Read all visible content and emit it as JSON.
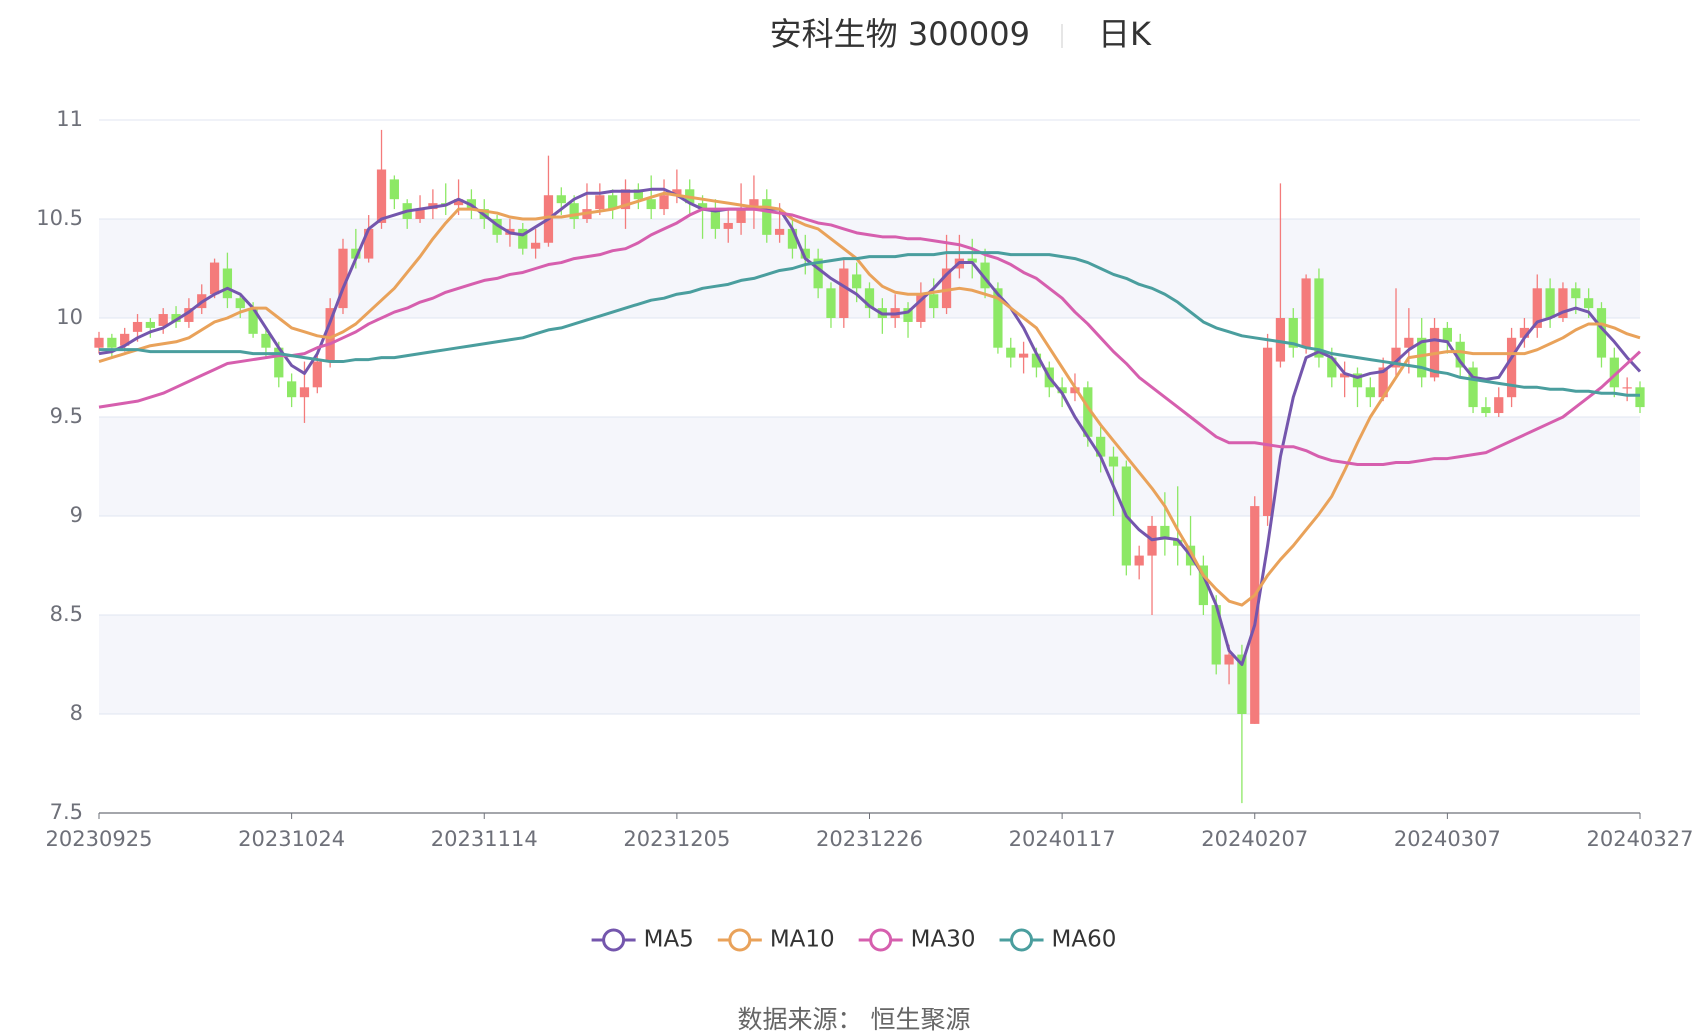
{
  "chart_data": {
    "type": "candlestick",
    "title": "安科生物 300009",
    "period": "日K",
    "source": "数据来源： 恒生聚源",
    "up_color": "#f47b7b",
    "down_color": "#8de865",
    "categories": [
      "20230925",
      null,
      null,
      null,
      null,
      null,
      null,
      null,
      null,
      null,
      null,
      null,
      null,
      null,
      null,
      "20231024",
      null,
      null,
      null,
      null,
      null,
      null,
      null,
      null,
      null,
      null,
      null,
      null,
      null,
      null,
      "20231114",
      null,
      null,
      null,
      null,
      null,
      null,
      null,
      null,
      null,
      null,
      null,
      null,
      null,
      null,
      "20231205",
      null,
      null,
      null,
      null,
      null,
      null,
      null,
      null,
      null,
      null,
      null,
      null,
      null,
      null,
      "20231226",
      null,
      null,
      null,
      null,
      null,
      null,
      null,
      null,
      null,
      null,
      null,
      null,
      null,
      null,
      "20240117",
      null,
      null,
      null,
      null,
      null,
      null,
      null,
      null,
      null,
      null,
      null,
      null,
      null,
      null,
      "20240207",
      null,
      null,
      null,
      null,
      null,
      null,
      null,
      null,
      null,
      null,
      null,
      null,
      null,
      null,
      "20240307",
      null,
      null,
      null,
      null,
      null,
      null,
      null,
      null,
      null,
      null,
      null,
      null,
      null,
      null,
      "20240327"
    ],
    "values": [
      [
        9.85,
        9.9,
        9.82,
        9.93
      ],
      [
        9.9,
        9.85,
        9.8,
        9.92
      ],
      [
        9.86,
        9.92,
        9.83,
        9.95
      ],
      [
        9.93,
        9.98,
        9.88,
        10.02
      ],
      [
        9.98,
        9.95,
        9.9,
        10.0
      ],
      [
        9.96,
        10.02,
        9.92,
        10.05
      ],
      [
        10.02,
        9.98,
        9.95,
        10.06
      ],
      [
        9.98,
        10.05,
        9.95,
        10.1
      ],
      [
        10.05,
        10.12,
        10.02,
        10.17
      ],
      [
        10.12,
        10.28,
        10.1,
        10.3
      ],
      [
        10.25,
        10.1,
        10.05,
        10.33
      ],
      [
        10.1,
        10.05,
        10.0,
        10.12
      ],
      [
        10.05,
        9.92,
        9.9,
        10.08
      ],
      [
        9.92,
        9.85,
        9.8,
        9.95
      ],
      [
        9.85,
        9.7,
        9.65,
        9.88
      ],
      [
        9.68,
        9.6,
        9.55,
        9.72
      ],
      [
        9.6,
        9.65,
        9.47,
        9.78
      ],
      [
        9.65,
        9.78,
        9.62,
        9.82
      ],
      [
        9.78,
        10.05,
        9.75,
        10.1
      ],
      [
        10.05,
        10.35,
        10.02,
        10.4
      ],
      [
        10.35,
        10.3,
        10.25,
        10.45
      ],
      [
        10.3,
        10.45,
        10.28,
        10.52
      ],
      [
        10.48,
        10.75,
        10.45,
        10.95
      ],
      [
        10.7,
        10.6,
        10.55,
        10.72
      ],
      [
        10.58,
        10.5,
        10.45,
        10.6
      ],
      [
        10.5,
        10.55,
        10.48,
        10.62
      ],
      [
        10.55,
        10.58,
        10.5,
        10.65
      ],
      [
        10.58,
        10.57,
        10.52,
        10.68
      ],
      [
        10.57,
        10.6,
        10.52,
        10.7
      ],
      [
        10.6,
        10.55,
        10.5,
        10.65
      ],
      [
        10.55,
        10.5,
        10.45,
        10.6
      ],
      [
        10.5,
        10.42,
        10.38,
        10.52
      ],
      [
        10.42,
        10.45,
        10.36,
        10.5
      ],
      [
        10.45,
        10.35,
        10.32,
        10.48
      ],
      [
        10.35,
        10.38,
        10.3,
        10.45
      ],
      [
        10.38,
        10.62,
        10.36,
        10.82
      ],
      [
        10.62,
        10.58,
        10.52,
        10.66
      ],
      [
        10.58,
        10.5,
        10.45,
        10.62
      ],
      [
        10.5,
        10.55,
        10.48,
        10.68
      ],
      [
        10.55,
        10.62,
        10.52,
        10.68
      ],
      [
        10.62,
        10.55,
        10.5,
        10.65
      ],
      [
        10.55,
        10.65,
        10.45,
        10.7
      ],
      [
        10.65,
        10.6,
        10.55,
        10.68
      ],
      [
        10.6,
        10.55,
        10.5,
        10.72
      ],
      [
        10.55,
        10.62,
        10.52,
        10.7
      ],
      [
        10.62,
        10.65,
        10.58,
        10.75
      ],
      [
        10.65,
        10.58,
        10.52,
        10.7
      ],
      [
        10.58,
        10.55,
        10.4,
        10.62
      ],
      [
        10.55,
        10.45,
        10.4,
        10.6
      ],
      [
        10.45,
        10.48,
        10.38,
        10.55
      ],
      [
        10.48,
        10.55,
        10.42,
        10.68
      ],
      [
        10.55,
        10.6,
        10.45,
        10.72
      ],
      [
        10.6,
        10.42,
        10.38,
        10.65
      ],
      [
        10.42,
        10.45,
        10.38,
        10.58
      ],
      [
        10.45,
        10.35,
        10.3,
        10.5
      ],
      [
        10.35,
        10.3,
        10.22,
        10.42
      ],
      [
        10.3,
        10.15,
        10.1,
        10.35
      ],
      [
        10.15,
        10.0,
        9.95,
        10.18
      ],
      [
        10.0,
        10.25,
        9.95,
        10.3
      ],
      [
        10.22,
        10.15,
        10.08,
        10.28
      ],
      [
        10.15,
        10.05,
        10.0,
        10.18
      ],
      [
        10.05,
        10.0,
        9.92,
        10.1
      ],
      [
        10.0,
        10.05,
        9.95,
        10.12
      ],
      [
        10.05,
        9.98,
        9.9,
        10.08
      ],
      [
        9.98,
        10.12,
        9.95,
        10.18
      ],
      [
        10.12,
        10.05,
        10.0,
        10.2
      ],
      [
        10.05,
        10.25,
        10.02,
        10.42
      ],
      [
        10.25,
        10.3,
        10.2,
        10.42
      ],
      [
        10.3,
        10.28,
        10.2,
        10.4
      ],
      [
        10.28,
        10.15,
        10.1,
        10.35
      ],
      [
        10.15,
        9.85,
        9.82,
        10.18
      ],
      [
        9.85,
        9.8,
        9.75,
        9.9
      ],
      [
        9.8,
        9.82,
        9.72,
        9.88
      ],
      [
        9.82,
        9.75,
        9.7,
        9.85
      ],
      [
        9.75,
        9.65,
        9.6,
        9.78
      ],
      [
        9.65,
        9.62,
        9.55,
        9.7
      ],
      [
        9.62,
        9.65,
        9.58,
        9.72
      ],
      [
        9.65,
        9.4,
        9.35,
        9.68
      ],
      [
        9.4,
        9.3,
        9.22,
        9.45
      ],
      [
        9.3,
        9.25,
        9.0,
        9.35
      ],
      [
        9.25,
        8.75,
        8.7,
        9.28
      ],
      [
        8.75,
        8.8,
        8.68,
        8.85
      ],
      [
        8.8,
        8.95,
        8.5,
        9.0
      ],
      [
        8.95,
        8.88,
        8.8,
        9.12
      ],
      [
        8.88,
        8.85,
        8.75,
        9.15
      ],
      [
        8.85,
        8.75,
        8.7,
        9.0
      ],
      [
        8.75,
        8.55,
        8.5,
        8.8
      ],
      [
        8.55,
        8.25,
        8.2,
        8.6
      ],
      [
        8.25,
        8.3,
        8.15,
        8.35
      ],
      [
        8.3,
        8.0,
        7.55,
        8.35
      ],
      [
        7.95,
        9.05,
        7.95,
        9.1
      ],
      [
        9.0,
        9.85,
        8.95,
        9.92
      ],
      [
        9.78,
        10.0,
        9.75,
        10.68
      ],
      [
        10.0,
        9.85,
        9.8,
        10.05
      ],
      [
        9.85,
        10.2,
        9.82,
        10.22
      ],
      [
        10.2,
        9.8,
        9.75,
        10.25
      ],
      [
        9.8,
        9.7,
        9.65,
        9.85
      ],
      [
        9.7,
        9.72,
        9.6,
        9.78
      ],
      [
        9.72,
        9.65,
        9.55,
        9.75
      ],
      [
        9.65,
        9.6,
        9.55,
        9.7
      ],
      [
        9.6,
        9.75,
        9.58,
        9.8
      ],
      [
        9.75,
        9.85,
        9.7,
        10.15
      ],
      [
        9.85,
        9.9,
        9.72,
        10.05
      ],
      [
        9.9,
        9.7,
        9.65,
        10.0
      ],
      [
        9.7,
        9.95,
        9.68,
        10.0
      ],
      [
        9.95,
        9.88,
        9.82,
        9.98
      ],
      [
        9.88,
        9.75,
        9.7,
        9.92
      ],
      [
        9.75,
        9.55,
        9.52,
        9.78
      ],
      [
        9.55,
        9.52,
        9.5,
        9.6
      ],
      [
        9.52,
        9.6,
        9.5,
        9.65
      ],
      [
        9.6,
        9.9,
        9.55,
        9.95
      ],
      [
        9.9,
        9.95,
        9.85,
        10.0
      ],
      [
        9.95,
        10.15,
        9.9,
        10.22
      ],
      [
        10.15,
        10.0,
        9.95,
        10.2
      ],
      [
        10.0,
        10.15,
        9.98,
        10.18
      ],
      [
        10.15,
        10.1,
        10.02,
        10.18
      ],
      [
        10.1,
        10.05,
        10.0,
        10.15
      ],
      [
        10.05,
        9.8,
        9.75,
        10.08
      ],
      [
        9.8,
        9.65,
        9.6,
        9.85
      ],
      [
        9.65,
        9.65,
        9.58,
        9.7
      ],
      [
        9.65,
        9.55,
        9.52,
        9.68
      ]
    ],
    "series": [
      {
        "name": "MA5",
        "color": "#7456ad",
        "values": [
          9.82,
          9.83,
          9.86,
          9.9,
          9.93,
          9.95,
          9.99,
          10.03,
          10.08,
          10.12,
          10.15,
          10.12,
          10.05,
          9.95,
          9.85,
          9.76,
          9.72,
          9.82,
          9.98,
          10.15,
          10.3,
          10.45,
          10.5,
          10.52,
          10.54,
          10.55,
          10.56,
          10.57,
          10.6,
          10.57,
          10.52,
          10.47,
          10.43,
          10.42,
          10.46,
          10.5,
          10.55,
          10.6,
          10.63,
          10.63,
          10.64,
          10.64,
          10.64,
          10.65,
          10.65,
          10.62,
          10.58,
          10.55,
          10.54,
          10.55,
          10.55,
          10.55,
          10.55,
          10.55,
          10.45,
          10.3,
          10.25,
          10.2,
          10.16,
          10.12,
          10.06,
          10.02,
          10.02,
          10.03,
          10.09,
          10.15,
          10.22,
          10.28,
          10.28,
          10.2,
          10.12,
          10.05,
          9.95,
          9.82,
          9.7,
          9.62,
          9.5,
          9.4,
          9.3,
          9.15,
          9.0,
          8.93,
          8.88,
          8.89,
          8.88,
          8.8,
          8.7,
          8.55,
          8.32,
          8.25,
          8.45,
          8.85,
          9.3,
          9.6,
          9.8,
          9.83,
          9.8,
          9.72,
          9.7,
          9.72,
          9.73,
          9.78,
          9.84,
          9.88,
          9.89,
          9.88,
          9.78,
          9.7,
          9.69,
          9.7,
          9.8,
          9.9,
          9.98,
          10.0,
          10.03,
          10.05,
          10.03,
          9.95,
          9.88,
          9.8,
          9.73
        ]
      },
      {
        "name": "MA10",
        "color": "#e9a25a",
        "values": [
          9.78,
          9.8,
          9.82,
          9.84,
          9.86,
          9.87,
          9.88,
          9.9,
          9.94,
          9.98,
          10.0,
          10.03,
          10.05,
          10.05,
          10.0,
          9.95,
          9.93,
          9.91,
          9.9,
          9.93,
          9.97,
          10.03,
          10.09,
          10.15,
          10.23,
          10.31,
          10.4,
          10.48,
          10.55,
          10.55,
          10.54,
          10.53,
          10.51,
          10.5,
          10.5,
          10.51,
          10.51,
          10.52,
          10.53,
          10.54,
          10.55,
          10.57,
          10.59,
          10.61,
          10.63,
          10.62,
          10.61,
          10.6,
          10.59,
          10.58,
          10.57,
          10.56,
          10.56,
          10.55,
          10.5,
          10.47,
          10.45,
          10.4,
          10.35,
          10.3,
          10.22,
          10.16,
          10.13,
          10.12,
          10.12,
          10.13,
          10.14,
          10.15,
          10.14,
          10.12,
          10.1,
          10.05,
          10.0,
          9.95,
          9.85,
          9.75,
          9.65,
          9.55,
          9.46,
          9.38,
          9.3,
          9.22,
          9.14,
          9.05,
          8.93,
          8.82,
          8.7,
          8.63,
          8.57,
          8.55,
          8.6,
          8.7,
          8.78,
          8.85,
          8.93,
          9.01,
          9.1,
          9.23,
          9.37,
          9.5,
          9.6,
          9.7,
          9.8,
          9.81,
          9.82,
          9.83,
          9.83,
          9.82,
          9.82,
          9.82,
          9.82,
          9.82,
          9.84,
          9.87,
          9.9,
          9.94,
          9.97,
          9.97,
          9.95,
          9.92,
          9.9
        ]
      },
      {
        "name": "MA30",
        "color": "#d65fae",
        "values": [
          9.55,
          9.56,
          9.57,
          9.58,
          9.6,
          9.62,
          9.65,
          9.68,
          9.71,
          9.74,
          9.77,
          9.78,
          9.79,
          9.8,
          9.81,
          9.81,
          9.82,
          9.85,
          9.87,
          9.9,
          9.93,
          9.97,
          10.0,
          10.03,
          10.05,
          10.08,
          10.1,
          10.13,
          10.15,
          10.17,
          10.19,
          10.2,
          10.22,
          10.23,
          10.25,
          10.27,
          10.28,
          10.3,
          10.31,
          10.32,
          10.34,
          10.35,
          10.38,
          10.42,
          10.45,
          10.48,
          10.52,
          10.55,
          10.55,
          10.55,
          10.55,
          10.55,
          10.54,
          10.53,
          10.52,
          10.5,
          10.48,
          10.47,
          10.45,
          10.43,
          10.42,
          10.41,
          10.41,
          10.4,
          10.4,
          10.39,
          10.38,
          10.37,
          10.35,
          10.32,
          10.3,
          10.27,
          10.23,
          10.2,
          10.15,
          10.1,
          10.03,
          9.97,
          9.9,
          9.83,
          9.77,
          9.7,
          9.65,
          9.6,
          9.55,
          9.5,
          9.45,
          9.4,
          9.37,
          9.37,
          9.37,
          9.36,
          9.35,
          9.35,
          9.33,
          9.3,
          9.28,
          9.27,
          9.26,
          9.26,
          9.26,
          9.27,
          9.27,
          9.28,
          9.29,
          9.29,
          9.3,
          9.31,
          9.32,
          9.35,
          9.38,
          9.41,
          9.44,
          9.47,
          9.5,
          9.55,
          9.6,
          9.65,
          9.71,
          9.77,
          9.83
        ]
      },
      {
        "name": "MA60",
        "color": "#4a9e9e",
        "values": [
          9.84,
          9.84,
          9.84,
          9.84,
          9.83,
          9.83,
          9.83,
          9.83,
          9.83,
          9.83,
          9.83,
          9.83,
          9.82,
          9.82,
          9.82,
          9.81,
          9.8,
          9.79,
          9.78,
          9.78,
          9.79,
          9.79,
          9.8,
          9.8,
          9.81,
          9.82,
          9.83,
          9.84,
          9.85,
          9.86,
          9.87,
          9.88,
          9.89,
          9.9,
          9.92,
          9.94,
          9.95,
          9.97,
          9.99,
          10.01,
          10.03,
          10.05,
          10.07,
          10.09,
          10.1,
          10.12,
          10.13,
          10.15,
          10.16,
          10.17,
          10.19,
          10.2,
          10.22,
          10.24,
          10.25,
          10.27,
          10.28,
          10.29,
          10.3,
          10.3,
          10.31,
          10.31,
          10.31,
          10.32,
          10.32,
          10.32,
          10.33,
          10.33,
          10.33,
          10.33,
          10.33,
          10.32,
          10.32,
          10.32,
          10.32,
          10.31,
          10.3,
          10.28,
          10.25,
          10.22,
          10.2,
          10.17,
          10.15,
          10.12,
          10.08,
          10.03,
          9.98,
          9.95,
          9.93,
          9.91,
          9.9,
          9.89,
          9.88,
          9.87,
          9.85,
          9.84,
          9.82,
          9.81,
          9.8,
          9.79,
          9.78,
          9.77,
          9.76,
          9.75,
          9.73,
          9.72,
          9.7,
          9.69,
          9.68,
          9.67,
          9.66,
          9.65,
          9.65,
          9.64,
          9.64,
          9.63,
          9.63,
          9.62,
          9.62,
          9.61,
          9.61
        ]
      }
    ],
    "ylim": [
      7.5,
      11
    ],
    "yticks": [
      7.5,
      8,
      8.5,
      9,
      9.5,
      10,
      10.5,
      11
    ],
    "grid": true
  }
}
